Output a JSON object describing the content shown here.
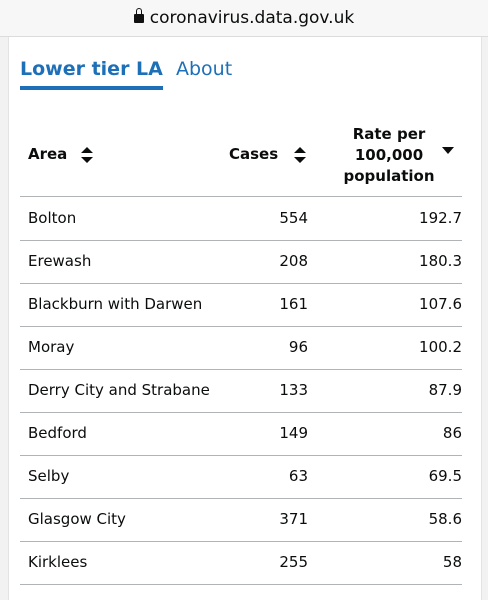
{
  "browser": {
    "url": "coronavirus.data.gov.uk"
  },
  "tabs": [
    "Lower tier LA",
    "About"
  ],
  "table": {
    "headers": [
      "Area",
      "Cases",
      "Rate per 100,000 population"
    ],
    "rows": [
      [
        "Bolton",
        554,
        192.7
      ],
      [
        "Erewash",
        208,
        180.3
      ],
      [
        "Blackburn with Darwen",
        161,
        107.6
      ],
      [
        "Moray",
        96,
        100.2
      ],
      [
        "Derry City and Strabane",
        133,
        87.9
      ],
      [
        "Bedford",
        149,
        86
      ],
      [
        "Selby",
        63,
        69.5
      ],
      [
        "Glasgow City",
        371,
        58.6
      ],
      [
        "Kirklees",
        255,
        58
      ]
    ]
  }
}
